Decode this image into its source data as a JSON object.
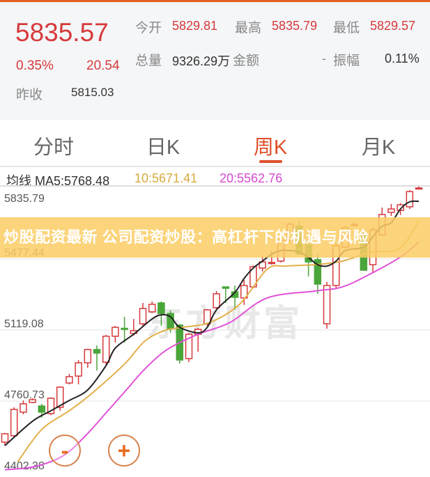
{
  "quote": {
    "price": "5835.57",
    "change_pct": "0.35%",
    "change": "20.54",
    "prev_close_label": "昨收",
    "prev_close": "5815.03",
    "open_label": "今开",
    "open": "5829.81",
    "high_label": "最高",
    "high": "5835.79",
    "low_label": "最低",
    "low": "5829.57",
    "volume_label": "总量",
    "volume": "9326.29万",
    "amount_label": "金额",
    "amount": "-",
    "amplitude_label": "振幅",
    "amplitude": "0.11%"
  },
  "tabs": [
    {
      "label": "分时",
      "active": false
    },
    {
      "label": "日K",
      "active": false
    },
    {
      "label": "周K",
      "active": true
    },
    {
      "label": "月K",
      "active": false
    }
  ],
  "ma_legend": {
    "ma5": "均线 MA5:5768.48",
    "ma10": "10:5671.41",
    "ma20": "20:5562.76"
  },
  "banner": "炒股配资最新 公司配资炒股：高杠杆下的机遇与风险",
  "watermark": "东方财富",
  "zoom_out": "-",
  "zoom_in": "+",
  "colors": {
    "up": "#d6393b",
    "down": "#4aa53a",
    "ma5": "#222222",
    "ma10": "#e2b04a",
    "ma20": "#e052d8",
    "accent": "#e0502a"
  },
  "chart_data": {
    "type": "candlestick",
    "y_ticks": [
      "5835.79",
      "5477.44",
      "5119.08",
      "4760.73",
      "4402.38"
    ],
    "ylim": [
      4402.38,
      5835.79
    ],
    "candles": [
      [
        4554,
        4600,
        4536,
        4596
      ],
      [
        4586,
        4729,
        4580,
        4719
      ],
      [
        4705,
        4764,
        4694,
        4747
      ],
      [
        4754,
        4775,
        4750,
        4768
      ],
      [
        4736,
        4747,
        4677,
        4705
      ],
      [
        4698,
        4780,
        4690,
        4775
      ],
      [
        4729,
        4835,
        4712,
        4831
      ],
      [
        4852,
        4898,
        4845,
        4884
      ],
      [
        4887,
        4968,
        4845,
        4954
      ],
      [
        4954,
        5025,
        4929,
        5021
      ],
      [
        5021,
        5042,
        4915,
        5003
      ],
      [
        4957,
        5095,
        4940,
        5088
      ],
      [
        5088,
        5140,
        5056,
        5133
      ],
      [
        5128,
        5186,
        5056,
        5124
      ],
      [
        5102,
        5175,
        5091,
        5116
      ],
      [
        5151,
        5256,
        5140,
        5228
      ],
      [
        5211,
        5263,
        5205,
        5249
      ],
      [
        5256,
        5263,
        5140,
        5203
      ],
      [
        5203,
        5218,
        5105,
        5126
      ],
      [
        5144,
        5150,
        4950,
        4968
      ],
      [
        4975,
        5105,
        4957,
        5098
      ],
      [
        5098,
        5130,
        5010,
        5123
      ],
      [
        5151,
        5225,
        5140,
        5221
      ],
      [
        5232,
        5316,
        5225,
        5302
      ],
      [
        5337,
        5337,
        5256,
        5330
      ],
      [
        5312,
        5344,
        5221,
        5284
      ],
      [
        5281,
        5372,
        5246,
        5344
      ],
      [
        5337,
        5445,
        5330,
        5439
      ],
      [
        5432,
        5491,
        5414,
        5463
      ],
      [
        5458,
        5520,
        5449,
        5460
      ],
      [
        5467,
        5590,
        5460,
        5572
      ],
      [
        5572,
        5660,
        5565,
        5653
      ],
      [
        5643,
        5667,
        5502,
        5502
      ],
      [
        5548,
        5572,
        5390,
        5463
      ],
      [
        5474,
        5502,
        5302,
        5351
      ],
      [
        5151,
        5362,
        5126,
        5344
      ],
      [
        5344,
        5555,
        5326,
        5544
      ],
      [
        5537,
        5645,
        5530,
        5636
      ],
      [
        5650,
        5660,
        5640,
        5652
      ],
      [
        5607,
        5625,
        5421,
        5421
      ],
      [
        5449,
        5635,
        5407,
        5625
      ],
      [
        5600,
        5737,
        5595,
        5702
      ],
      [
        5713,
        5755,
        5695,
        5730
      ],
      [
        5723,
        5760,
        5700,
        5751
      ],
      [
        5741,
        5825,
        5730,
        5818
      ],
      [
        5835,
        5846,
        5830,
        5836
      ]
    ],
    "candle_format": [
      "open",
      "high",
      "low",
      "close"
    ],
    "ma5": [
      [
        1,
        4536
      ],
      [
        4,
        4659
      ],
      [
        6,
        4712
      ],
      [
        8,
        4764
      ],
      [
        10,
        4817
      ],
      [
        12,
        4940
      ],
      [
        13,
        5028
      ],
      [
        15,
        5098
      ],
      [
        17,
        5175
      ],
      [
        18,
        5196
      ],
      [
        19,
        5186
      ],
      [
        20,
        5133
      ],
      [
        22,
        5105
      ],
      [
        23,
        5133
      ],
      [
        24,
        5221
      ],
      [
        26,
        5309
      ],
      [
        27,
        5379
      ],
      [
        28,
        5432
      ],
      [
        29,
        5467
      ],
      [
        30,
        5502
      ],
      [
        31,
        5520
      ],
      [
        32,
        5520
      ],
      [
        33,
        5513
      ],
      [
        34,
        5485
      ],
      [
        35,
        5449
      ],
      [
        36,
        5442
      ],
      [
        37,
        5467
      ],
      [
        38,
        5520
      ],
      [
        40,
        5537
      ],
      [
        41,
        5590
      ],
      [
        42,
        5643
      ],
      [
        43,
        5660
      ],
      [
        44,
        5730
      ],
      [
        45,
        5766
      ],
      [
        46,
        5768.48
      ]
    ],
    "ma10": [
      [
        2.4,
        4455
      ],
      [
        5,
        4617
      ],
      [
        8,
        4712
      ],
      [
        10,
        4782
      ],
      [
        12.2,
        4870
      ],
      [
        14.2,
        4957
      ],
      [
        16.2,
        5063
      ],
      [
        18.3,
        5116
      ],
      [
        20.3,
        5133
      ],
      [
        23.3,
        5158
      ],
      [
        26.5,
        5249
      ],
      [
        29.5,
        5425
      ],
      [
        31.5,
        5442
      ],
      [
        34.7,
        5449
      ],
      [
        37.7,
        5467
      ],
      [
        40.8,
        5513
      ],
      [
        43.9,
        5530
      ],
      [
        46,
        5671.41
      ]
    ],
    "ma20": [
      [
        1,
        4414
      ],
      [
        4.3,
        4431
      ],
      [
        7.3,
        4484
      ],
      [
        9.6,
        4578
      ],
      [
        12.2,
        4712
      ],
      [
        14.2,
        4817
      ],
      [
        16.2,
        4922
      ],
      [
        18.3,
        5010
      ],
      [
        20.3,
        5063
      ],
      [
        22.4,
        5105
      ],
      [
        25.5,
        5158
      ],
      [
        29.5,
        5281
      ],
      [
        34.7,
        5316
      ],
      [
        37.7,
        5337
      ],
      [
        40.8,
        5404
      ],
      [
        43.9,
        5485
      ],
      [
        46,
        5562.76
      ]
    ]
  }
}
